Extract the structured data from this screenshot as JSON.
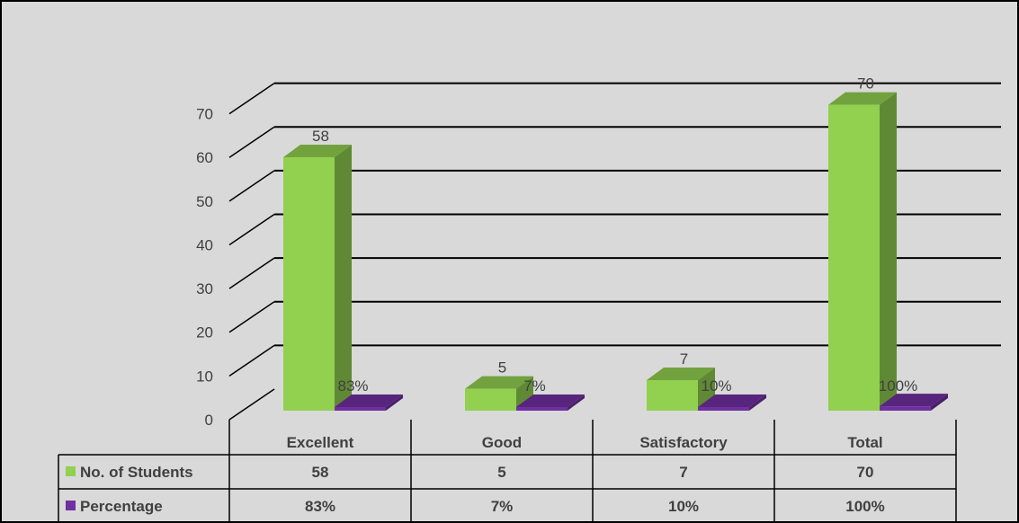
{
  "chart_data": {
    "type": "bar",
    "categories": [
      "Excellent",
      "Good",
      "Satisfactory",
      "Total"
    ],
    "series": [
      {
        "name": "No. of Students",
        "values": [
          58,
          5,
          7,
          70
        ],
        "labels": [
          "58",
          "5",
          "7",
          "70"
        ],
        "color": "#92d050"
      },
      {
        "name": "Percentage",
        "values": [
          0.83,
          0.07,
          0.1,
          1.0
        ],
        "labels": [
          "83%",
          "7%",
          "10%",
          "100%"
        ],
        "color": "#7030a0"
      }
    ],
    "yticks": [
      "0",
      "10",
      "20",
      "30",
      "40",
      "50",
      "60",
      "70"
    ],
    "ylim": [
      0,
      70
    ],
    "grid": true,
    "data_table": true,
    "title": "",
    "xlabel": "",
    "ylabel": ""
  }
}
